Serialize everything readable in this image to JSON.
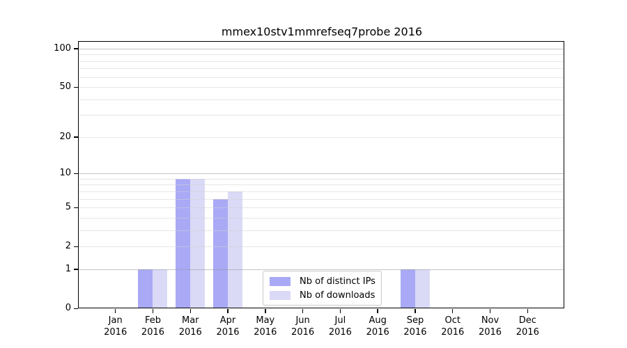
{
  "figure": {
    "title": "mmex10stv1mmrefseq7probe 2016"
  },
  "chart_data": {
    "type": "bar",
    "title": "mmex10stv1mmrefseq7probe 2016",
    "categories": [
      "Jan",
      "Feb",
      "Mar",
      "Apr",
      "May",
      "Jun",
      "Jul",
      "Aug",
      "Sep",
      "Oct",
      "Nov",
      "Dec"
    ],
    "x_tick_second_line": "2016",
    "series": [
      {
        "name": "Nb of distinct IPs",
        "color": "#a9a9f6",
        "values": [
          0,
          1,
          9,
          6,
          0,
          0,
          0,
          0,
          1,
          0,
          0,
          0
        ]
      },
      {
        "name": "Nb of downloads",
        "color": "#dadaf7",
        "values": [
          0,
          1,
          9,
          7,
          0,
          0,
          0,
          0,
          1,
          0,
          0,
          0
        ]
      }
    ],
    "y_axis": {
      "scale": "log1p",
      "ticks": [
        0,
        1,
        2,
        5,
        10,
        20,
        50,
        100
      ],
      "max": 113,
      "min": 0
    },
    "gridlines": {
      "major": [
        1,
        10,
        100
      ],
      "minor": [
        2,
        3,
        4,
        5,
        6,
        7,
        8,
        9,
        20,
        30,
        40,
        50,
        60,
        70,
        80,
        90
      ]
    },
    "legend": {
      "position": "inside-lower-center",
      "entries": [
        "Nb of distinct IPs",
        "Nb of downloads"
      ]
    },
    "grid": "horizontal major+minor, drawn over bars",
    "xlabel": "",
    "ylabel": ""
  }
}
